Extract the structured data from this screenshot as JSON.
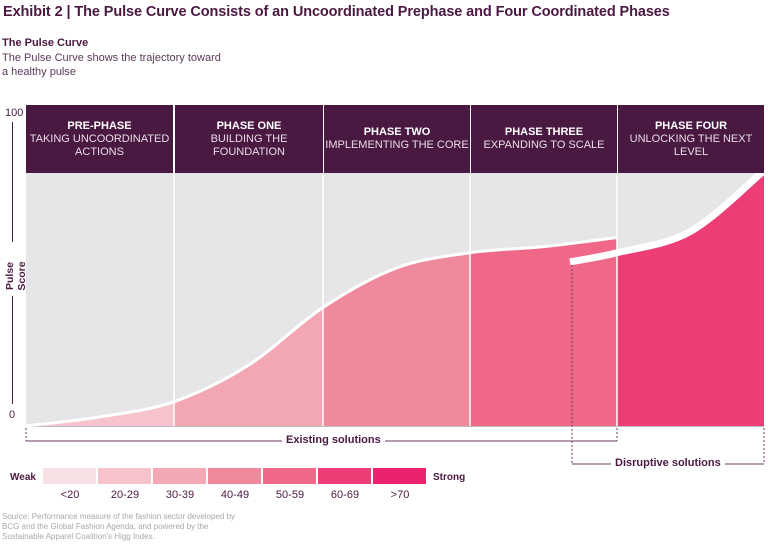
{
  "title": "Exhibit 2 | The Pulse Curve Consists of an Uncoordinated Prephase and Four Coordinated Phases",
  "subtitle": {
    "heading": "The Pulse Curve",
    "description": "The Pulse Curve shows the trajectory toward a healthy pulse"
  },
  "y_axis": {
    "label": "Pulse Score",
    "top_tick": "100",
    "bottom_tick": "0"
  },
  "phases": [
    {
      "title": "PRE-PHASE",
      "subtitle": "TAKING UNCOORDINATED ACTIONS",
      "color": "#f6c3cc"
    },
    {
      "title": "PHASE ONE",
      "subtitle": "BUILDING THE FOUNDATION",
      "color": "#f2a7b3"
    },
    {
      "title": "PHASE TWO",
      "subtitle": "IMPLEMENTING THE CORE",
      "color": "#ef899c"
    },
    {
      "title": "PHASE THREE",
      "subtitle": "EXPANDING TO SCALE",
      "color": "#ef6888"
    },
    {
      "title": "PHASE FOUR",
      "subtitle": "UNLOCKING THE NEXT LEVEL",
      "color": "#ec3e75"
    }
  ],
  "brackets": {
    "existing": "Existing solutions",
    "disruptive": "Disruptive solutions"
  },
  "legend": {
    "weak_label": "Weak",
    "strong_label": "Strong",
    "items": [
      {
        "range": "<20",
        "color": "#f8e1e5"
      },
      {
        "range": "20-29",
        "color": "#f6c3cc"
      },
      {
        "range": "30-39",
        "color": "#f2a7b3"
      },
      {
        "range": "40-49",
        "color": "#ef899c"
      },
      {
        "range": "50-59",
        "color": "#ef6888"
      },
      {
        "range": "60-69",
        "color": "#ec3e75"
      },
      {
        "range": ">70",
        "color": "#eb2270"
      }
    ]
  },
  "colors": {
    "header_bg": "#4a1942",
    "plot_bg": "#e6e6e8",
    "curve": "#ffffff"
  },
  "chart_data": {
    "type": "area",
    "title": "The Pulse Curve",
    "ylabel": "Pulse Score",
    "ylim": [
      0,
      100
    ],
    "categories": [
      "Pre-phase",
      "Phase One",
      "Phase Two",
      "Phase Three",
      "Phase Four"
    ],
    "existing_curve": {
      "x_phase_fraction": [
        0.0,
        0.5,
        1.0,
        1.5,
        2.0,
        2.5,
        3.0,
        3.5,
        4.0
      ],
      "y": [
        0,
        3,
        8,
        20,
        39,
        52,
        57,
        59,
        62
      ]
    },
    "disruptive_curve": {
      "x_phase_fraction": [
        3.68,
        4.0,
        4.5,
        5.0
      ],
      "y": [
        54,
        57,
        64,
        84
      ]
    }
  },
  "source": "Source: Performance measure of the fashion sector developed by BCG and the Global Fashion Agenda, and powered by the Sustainable Apparel Coalition's Higg Index."
}
